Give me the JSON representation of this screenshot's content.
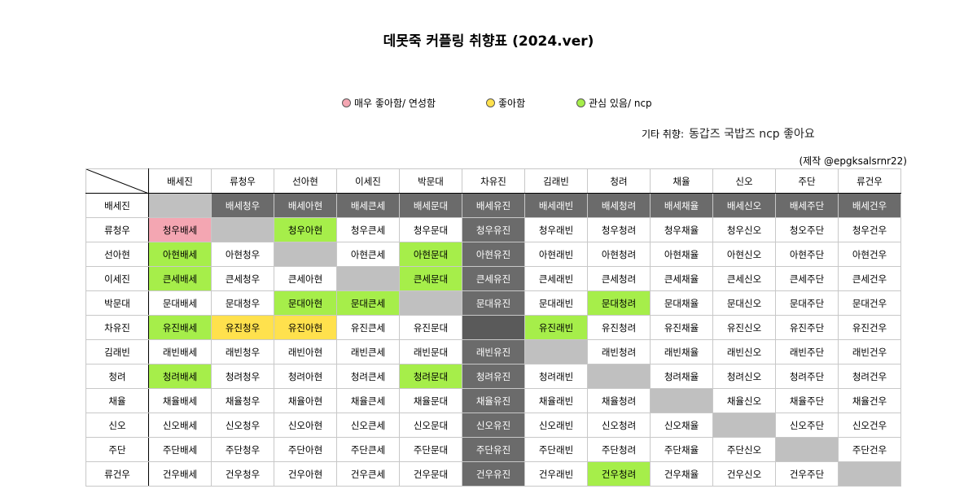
{
  "title": "데못죽 커플링 취향표 (2024.ver)",
  "legend": [
    {
      "label": "매우 좋아함/ 연성함",
      "color": "#f4a6b2"
    },
    {
      "label": "좋아함",
      "color": "#ffe14d"
    },
    {
      "label": "관심 있음/ ncp",
      "color": "#a6ee4a"
    }
  ],
  "etc": {
    "label": "기타 취향:",
    "value": "동갑즈 국밥즈 ncp 좋아요"
  },
  "credit": "(제작 @epgksalsrnr22)",
  "columns": [
    "배세진",
    "류청우",
    "선아현",
    "이세진",
    "박문대",
    "차유진",
    "김래빈",
    "청려",
    "채율",
    "신오",
    "주단",
    "류건우"
  ],
  "rows": [
    {
      "label": "배세진",
      "cells": [
        "",
        "배세청우",
        "배세아현",
        "배세큰세",
        "배세문대",
        "배세유진",
        "배세래빈",
        "배세청려",
        "배세채율",
        "배세신오",
        "배세주단",
        "배세건우"
      ]
    },
    {
      "label": "류청우",
      "cells": [
        "청우배세",
        "",
        "청우아현",
        "청우큰세",
        "청우문대",
        "청우유진",
        "청우래빈",
        "청우청려",
        "청우채율",
        "청우신오",
        "청오주단",
        "청우건우"
      ]
    },
    {
      "label": "선아현",
      "cells": [
        "아현배세",
        "아현청우",
        "",
        "아현큰세",
        "아현문대",
        "아현유진",
        "아현래빈",
        "아현청려",
        "아현채율",
        "아현신오",
        "아현주단",
        "아현건우"
      ]
    },
    {
      "label": "이세진",
      "cells": [
        "큰세배세",
        "큰세청우",
        "큰세아현",
        "",
        "큰세문대",
        "큰세유진",
        "큰세래빈",
        "큰세청려",
        "큰세채율",
        "큰세신오",
        "큰세주단",
        "큰세건우"
      ]
    },
    {
      "label": "박문대",
      "cells": [
        "문대배세",
        "문대청우",
        "문대아현",
        "문대큰세",
        "",
        "문대유진",
        "문대래빈",
        "문대청려",
        "문대채율",
        "문대신오",
        "문대주단",
        "문대건우"
      ]
    },
    {
      "label": "차유진",
      "cells": [
        "유진배세",
        "유진청우",
        "유진아현",
        "유진큰세",
        "유진문대",
        "",
        "유진래빈",
        "유진청려",
        "유진채율",
        "유진신오",
        "유진주단",
        "유진건우"
      ]
    },
    {
      "label": "김래빈",
      "cells": [
        "래빈배세",
        "래빈청우",
        "래빈아현",
        "래빈큰세",
        "래빈문대",
        "래빈유진",
        "",
        "래빈청려",
        "래빈채율",
        "래빈신오",
        "래빈주단",
        "래빈건우"
      ]
    },
    {
      "label": "청려",
      "cells": [
        "청려배세",
        "청려청우",
        "청려아현",
        "청려큰세",
        "청려문대",
        "청려유진",
        "청려래빈",
        "",
        "청려채율",
        "청려신오",
        "청려주단",
        "청려건우"
      ]
    },
    {
      "label": "채율",
      "cells": [
        "채율배세",
        "채율청우",
        "채율아현",
        "채율큰세",
        "채율문대",
        "채율유진",
        "채율래빈",
        "채율청려",
        "",
        "채율신오",
        "채율주단",
        "채율건우"
      ]
    },
    {
      "label": "신오",
      "cells": [
        "신오배세",
        "신오청우",
        "신오아현",
        "신오큰세",
        "신오문대",
        "신오유진",
        "신오래빈",
        "신오청려",
        "신오채율",
        "",
        "신오주단",
        "신오건우"
      ]
    },
    {
      "label": "주단",
      "cells": [
        "주단배세",
        "주단청우",
        "주단아현",
        "주단큰세",
        "주단문대",
        "주단유진",
        "주단래빈",
        "주단청려",
        "주단채율",
        "주단신오",
        "",
        "주단건우"
      ]
    },
    {
      "label": "류건우",
      "cells": [
        "건우배세",
        "건우청우",
        "건우아현",
        "건우큰세",
        "건우문대",
        "건우유진",
        "건우래빈",
        "건우청려",
        "건우채율",
        "건우신오",
        "건우주단",
        ""
      ]
    }
  ],
  "highlights": {
    "pink": [
      [
        1,
        0
      ]
    ],
    "yellow": [
      [
        5,
        1
      ],
      [
        5,
        2
      ]
    ],
    "green": [
      [
        1,
        2
      ],
      [
        2,
        0
      ],
      [
        2,
        4
      ],
      [
        3,
        0
      ],
      [
        3,
        4
      ],
      [
        4,
        2
      ],
      [
        4,
        3
      ],
      [
        4,
        7
      ],
      [
        5,
        0
      ],
      [
        5,
        6
      ],
      [
        7,
        0
      ],
      [
        7,
        4
      ],
      [
        11,
        7
      ]
    ]
  }
}
